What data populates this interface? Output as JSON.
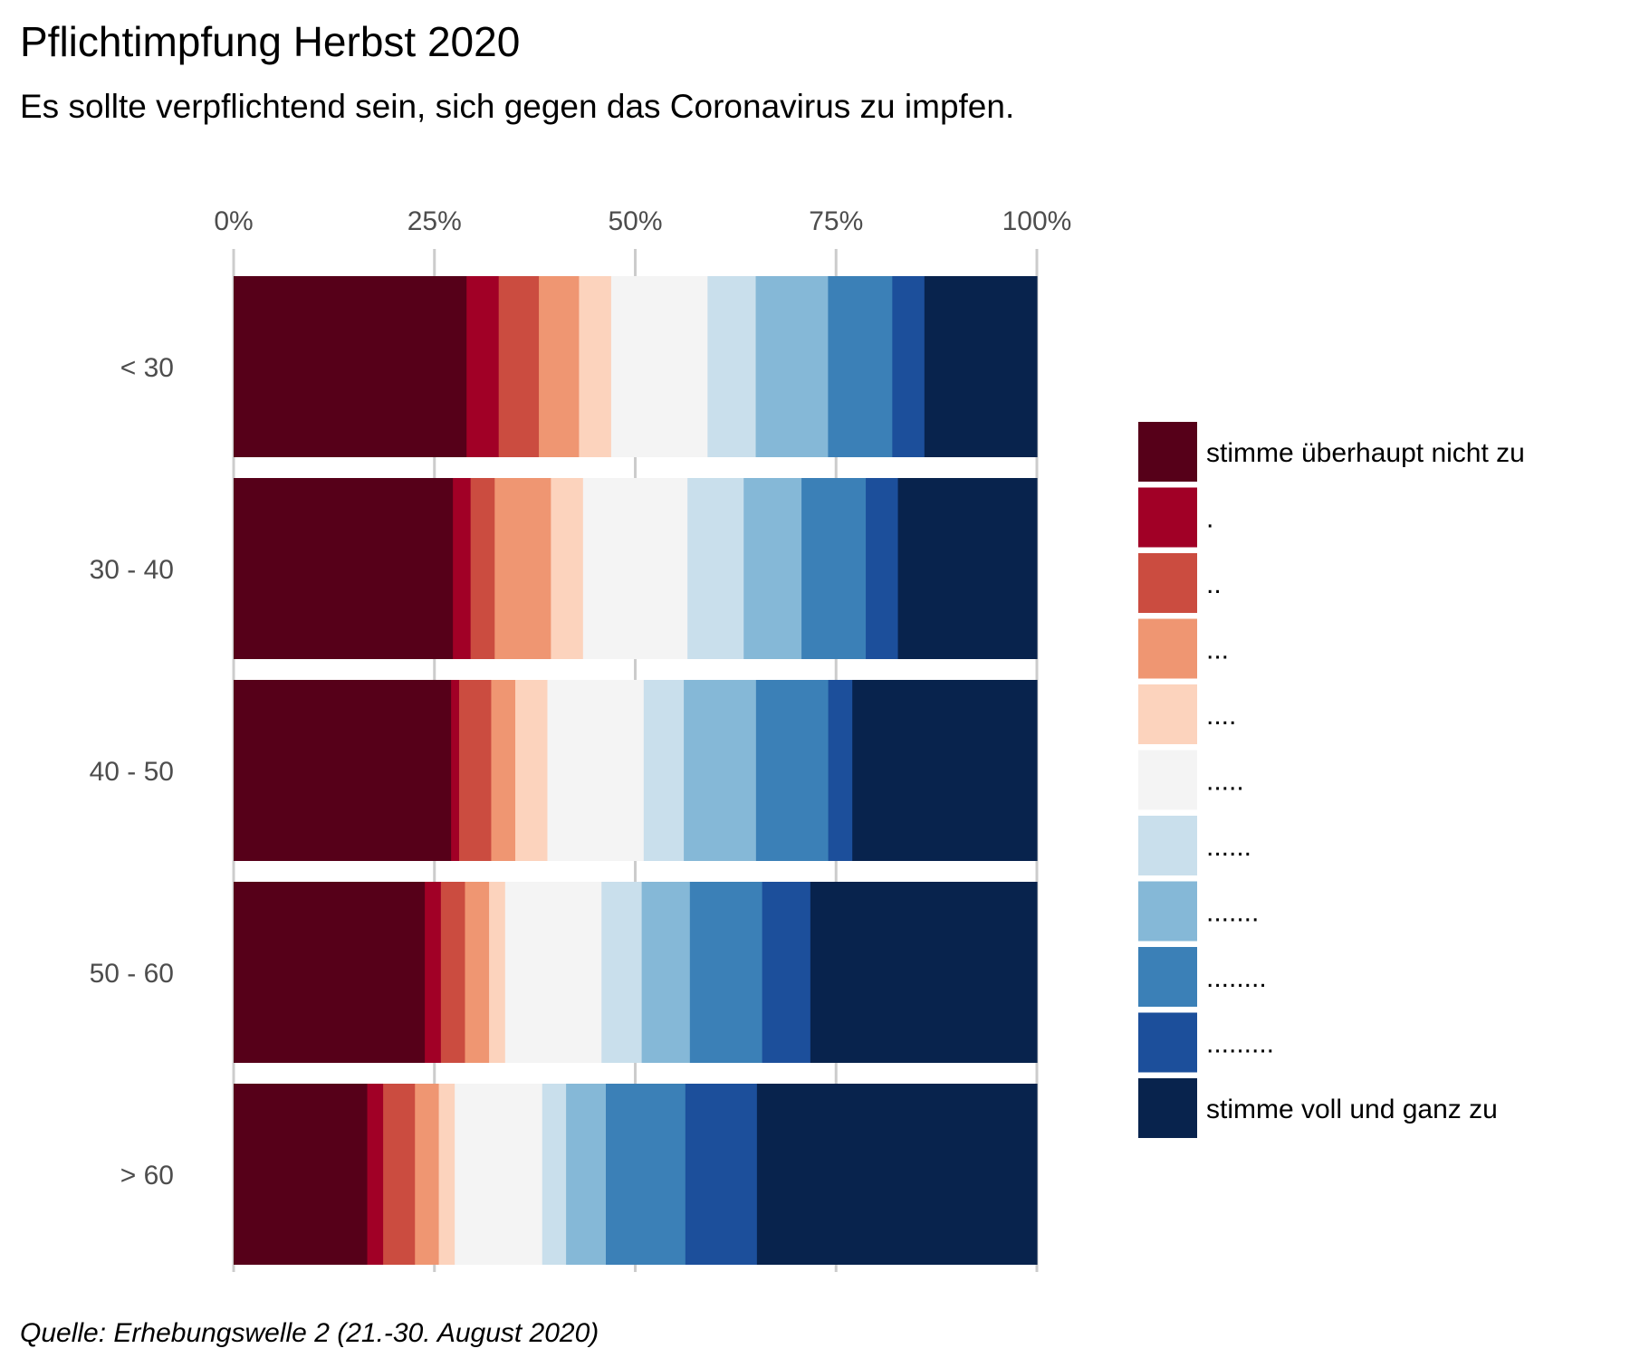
{
  "chart_data": {
    "type": "bar",
    "orientation": "horizontal",
    "stacked": "percent",
    "title": "Pflichtimpfung Herbst 2020",
    "subtitle": "Es sollte verpflichtend sein, sich gegen das Coronavirus zu impfen.",
    "caption": "Quelle: Erhebungswelle 2 (21.-30. August 2020)",
    "xlabel": "",
    "ylabel": "",
    "xlim": [
      0,
      100
    ],
    "x_ticks": [
      "0%",
      "25%",
      "50%",
      "75%",
      "100%"
    ],
    "x_tick_values": [
      0,
      25,
      50,
      75,
      100
    ],
    "x_axis_position": "top",
    "grid": true,
    "legend_position": "right",
    "categories": [
      "< 30",
      "30 - 40",
      "40 - 50",
      "50 - 60",
      "> 60"
    ],
    "series": [
      {
        "name": "stimme überhaupt nicht zu",
        "color": "#560019",
        "values": [
          29,
          27.3,
          27.1,
          23.8,
          16.8
        ]
      },
      {
        "name": ".",
        "color": "#A10026",
        "values": [
          4,
          2.2,
          1,
          2,
          2
        ]
      },
      {
        "name": "..",
        "color": "#CB4C40",
        "values": [
          5,
          3,
          4,
          3,
          4
        ]
      },
      {
        "name": "...",
        "color": "#EF9672",
        "values": [
          5,
          7,
          3,
          3,
          3
        ]
      },
      {
        "name": "....",
        "color": "#FCD3BD",
        "values": [
          4,
          4,
          4,
          2,
          2
        ]
      },
      {
        "name": ".....",
        "color": "#F4F4F4",
        "values": [
          12,
          13,
          12,
          12,
          11
        ]
      },
      {
        "name": "......",
        "color": "#C9DFEC",
        "values": [
          6,
          7,
          5,
          5,
          3
        ]
      },
      {
        "name": ".......",
        "color": "#85B8D7",
        "values": [
          9,
          7.2,
          9,
          6,
          5
        ]
      },
      {
        "name": "........",
        "color": "#3B80B7",
        "values": [
          8,
          8,
          9,
          9,
          10
        ]
      },
      {
        "name": ".........",
        "color": "#1C4F9B",
        "values": [
          4,
          4,
          3,
          6,
          9
        ]
      },
      {
        "name": "stimme voll und ganz zu",
        "color": "#08234D",
        "values": [
          14,
          17.3,
          23,
          28.2,
          35.2
        ]
      }
    ]
  }
}
